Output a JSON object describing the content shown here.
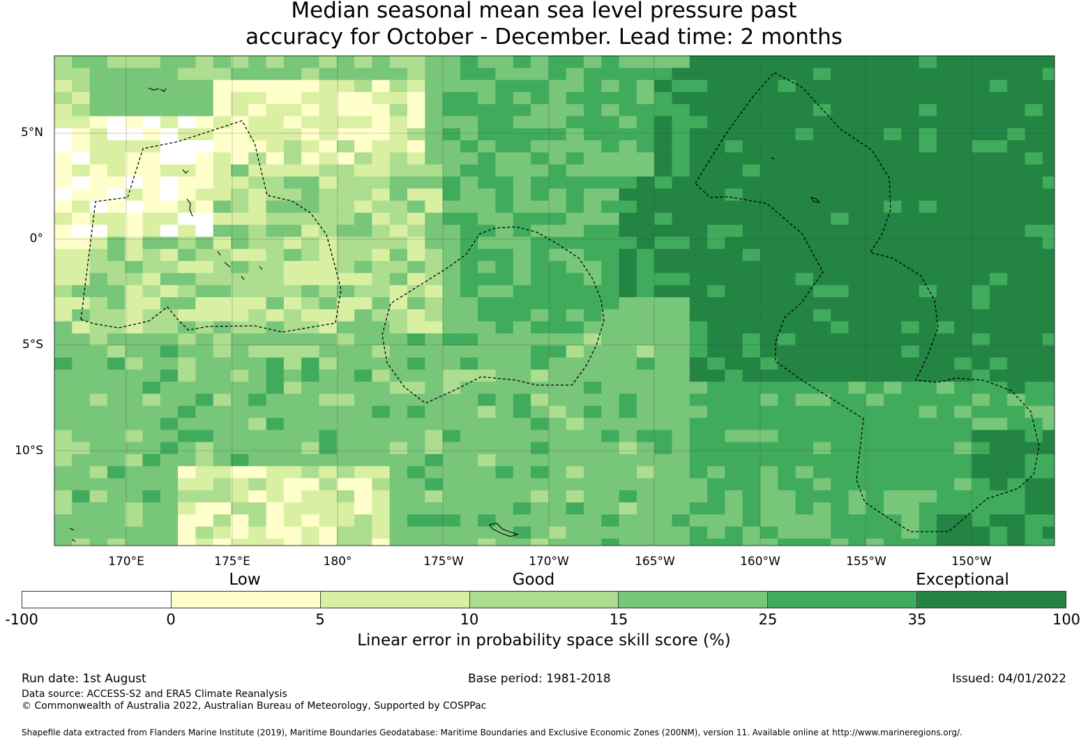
{
  "title": {
    "line1": "Median seasonal mean sea level pressure past",
    "line2": "accuracy for October - December. Lead time: 2 months"
  },
  "map": {
    "lat_labels": [
      "5°N",
      "0°",
      "5°S",
      "10°S"
    ],
    "lon_labels": [
      "170°E",
      "175°E",
      "180°",
      "175°W",
      "170°W",
      "165°W",
      "160°W",
      "155°W",
      "150°W"
    ],
    "colors": {
      "-100": "#ffffff",
      "0": "#ffffcc",
      "5": "#d9f0a3",
      "10": "#addd8e",
      "15": "#78c679",
      "25": "#41ab5d",
      "35": "#238443"
    }
  },
  "legend": {
    "categories": [
      "Low",
      "Good",
      "Exceptional"
    ],
    "colors": [
      "#ffffff",
      "#ffffcc",
      "#d9f0a3",
      "#addd8e",
      "#78c679",
      "#41ab5d",
      "#238443"
    ],
    "ticks": [
      "-100",
      "0",
      "5",
      "10",
      "15",
      "25",
      "35",
      "100"
    ],
    "title": "Linear error in probability space skill score (%)"
  },
  "footer": {
    "run_date": "Run date: 1st August",
    "base_period": "Base period: 1981-2018",
    "issued": "Issued: 04/01/2022",
    "data_source": "Data source: ACCESS-S2 and ERA5 Climate Reanalysis",
    "copyright": "© Commonwealth of Australia 2022, Australian Bureau of Meteorology, Supported by COSPPac",
    "shapefile": "Shapefile data extracted from Flanders Marine Institute (2019), Maritime Boundaries Geodatabase: Maritime Boundaries and Exclusive Economic Zones (200NM), version 11. Available online at http://www.marineregions.org/."
  }
}
